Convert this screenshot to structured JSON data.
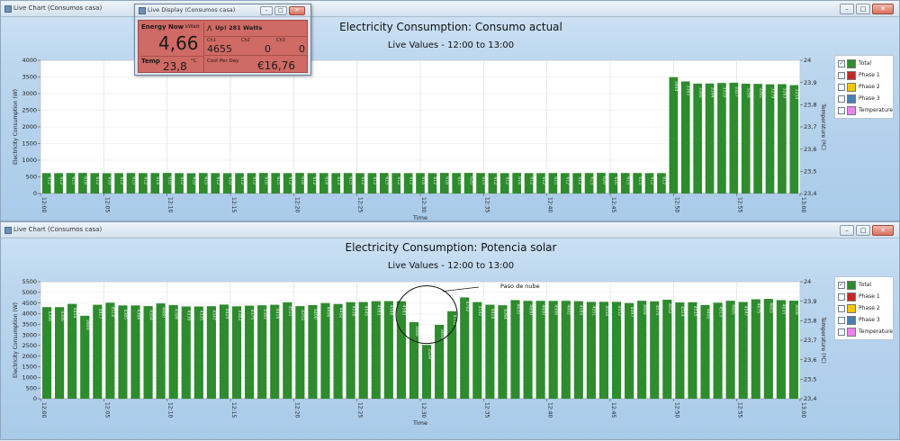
{
  "live_display": {
    "title": "Live Display (Consumos casa)",
    "energy_label": "Energy Now",
    "energy_unit": "kWatt",
    "energy_value": "4,66",
    "status": "Up! 281 Watts",
    "temp_label": "Temp",
    "temp_value": "23,8",
    "temp_unit": "°C",
    "ch1_label": "Ch1",
    "ch1_value": "4655",
    "ch2_label": "Ch2",
    "ch2_value": "0",
    "ch3_label": "Ch3",
    "ch3_value": "0",
    "cost_label": "Cost Per Day",
    "cost_value": "€16,76"
  },
  "windows": [
    {
      "title": "Live Chart (Consumos casa)"
    },
    {
      "title": "Live Chart (Consumos casa)"
    }
  ],
  "legend": [
    {
      "label": "Total",
      "color": "#2e8b2e",
      "checked": true
    },
    {
      "label": "Phase 1",
      "color": "#c62828",
      "checked": false
    },
    {
      "label": "Phase 2",
      "color": "#f2c500",
      "checked": false
    },
    {
      "label": "Phase 3",
      "color": "#4a7fb3",
      "checked": false
    },
    {
      "label": "Temperature",
      "color": "#ee82ee",
      "checked": false
    }
  ],
  "chart_data": [
    {
      "type": "bar",
      "title": "Electricity Consumption: Consumo actual",
      "subtitle": "Live Values - 12:00 to 13:00",
      "xlabel": "Time",
      "ylabel": "Electricity Consumption (W)",
      "y2label": "Temperature (ºC)",
      "ylim": [
        0,
        4000
      ],
      "yticks": [
        0,
        500,
        1000,
        1500,
        2000,
        2500,
        3000,
        3500,
        4000
      ],
      "y2ticks": [
        "23,4",
        "23,5",
        "23,6",
        "23,7",
        "23,8",
        "23,9",
        "24"
      ],
      "xticks": [
        "12:00",
        "12:05",
        "12:10",
        "12:15",
        "12:20",
        "12:25",
        "12:30",
        "12:35",
        "12:40",
        "12:45",
        "12:50",
        "12:55",
        "13:00"
      ],
      "bar_color": "#2e8b2e",
      "grid": true,
      "legend_position": "right",
      "values": [
        612,
        612,
        615,
        618,
        612,
        610,
        612,
        615,
        612,
        614,
        618,
        612,
        610,
        615,
        612,
        610,
        612,
        612,
        616,
        615,
        612,
        618,
        612,
        614,
        613,
        615,
        612,
        612,
        615,
        612,
        612,
        614,
        612,
        618,
        615,
        620,
        615,
        612,
        612,
        618,
        612,
        612,
        615,
        612,
        612,
        615,
        620,
        616,
        615,
        615,
        612,
        612,
        3494,
        3365,
        3300,
        3304,
        3319,
        3327,
        3298,
        3292,
        3279,
        3283,
        3254
      ],
      "labels": [
        "612",
        "612",
        "615",
        "618",
        "612",
        "610",
        "612",
        "615",
        "612",
        "614",
        "618",
        "612",
        "610",
        "615",
        "612",
        "610",
        "612",
        "612",
        "616",
        "615",
        "612",
        "618",
        "612",
        "614",
        "613",
        "615",
        "612",
        "612",
        "615",
        "612",
        "612",
        "614",
        "612",
        "618",
        "615",
        "620",
        "615",
        "612",
        "612",
        "618",
        "612",
        "612",
        "615",
        "612",
        "612",
        "615",
        "620",
        "616",
        "615",
        "615",
        "612",
        "612",
        "3494",
        "3365",
        "3300",
        "3304",
        "3319",
        "3327",
        "3298",
        "3292",
        "3279",
        "3283",
        "3254"
      ]
    },
    {
      "type": "bar",
      "title": "Electricity Consumption: Potencia solar",
      "subtitle": "Live Values - 12:00 to 13:00",
      "xlabel": "Time",
      "ylabel": "Electricity Consumption (W)",
      "y2label": "Temperature (ºC)",
      "ylim": [
        0,
        5500
      ],
      "yticks": [
        0,
        500,
        1000,
        1500,
        2000,
        2500,
        3000,
        3500,
        4000,
        4500,
        5000,
        5500
      ],
      "y2ticks": [
        "23,4",
        "23,5",
        "23,6",
        "23,7",
        "23,8",
        "23,9",
        "24"
      ],
      "xticks": [
        "12:00",
        "12:05",
        "12:10",
        "12:15",
        "12:20",
        "12:25",
        "12:30",
        "12:35",
        "12:40",
        "12:45",
        "12:50",
        "12:55",
        "13:00"
      ],
      "bar_color": "#2e8b2e",
      "grid": true,
      "legend_position": "right",
      "annotation": "Paso de nube",
      "values": [
        4306,
        4306,
        4458,
        3900,
        4417,
        4514,
        4385,
        4384,
        4354,
        4480,
        4398,
        4336,
        4335,
        4347,
        4424,
        4343,
        4375,
        4392,
        4416,
        4531,
        4353,
        4400,
        4496,
        4452,
        4538,
        4545,
        4583,
        4588,
        4583,
        3600,
        2529,
        3469,
        4112,
        4762,
        4542,
        4418,
        4394,
        4635,
        4600,
        4600,
        4598,
        4602,
        4585,
        4551,
        4554,
        4552,
        4497,
        4604,
        4575,
        4652,
        4524,
        4535,
        4405,
        4513,
        4605,
        4547,
        4675,
        4693,
        4633,
        4608
      ],
      "labels": [
        "4306",
        "4306",
        "4458",
        "3900",
        "4417",
        "4514",
        "4385",
        "4384",
        "4354",
        "4480",
        "4398",
        "4336",
        "4335",
        "4347",
        "4424",
        "4343",
        "4375",
        "4392",
        "4416",
        "4531",
        "4353",
        "4400",
        "4496",
        "4452",
        "4538",
        "4545",
        "4583",
        "4588",
        "4583",
        "3600",
        "2529",
        "3469",
        "4112",
        "4762",
        "4542",
        "4418",
        "4394",
        "4635",
        "4600",
        "4600",
        "4598",
        "4602",
        "4585",
        "4551",
        "4554",
        "4552",
        "4497",
        "4604",
        "4575",
        "4652",
        "4524",
        "4535",
        "4405",
        "4513",
        "4605",
        "4547",
        "4675",
        "4693",
        "4633",
        "4608"
      ]
    }
  ]
}
